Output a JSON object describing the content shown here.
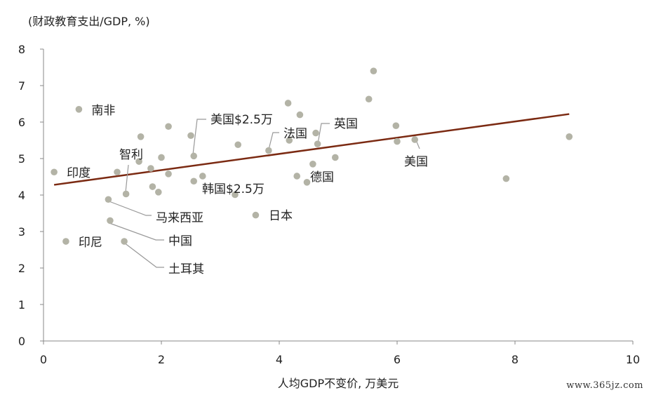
{
  "chart_data": {
    "type": "scatter",
    "title": "",
    "ylabel": "(财政教育支出/GDP, %)",
    "xlabel": "人均GDP不变价, 万美元",
    "xlim": [
      0,
      10
    ],
    "ylim": [
      0,
      8
    ],
    "xticks": [
      "0",
      "2",
      "4",
      "6",
      "8",
      "10"
    ],
    "yticks": [
      "0",
      "1",
      "2",
      "3",
      "4",
      "5",
      "6",
      "7",
      "8"
    ],
    "grid": false,
    "points": [
      {
        "x": 0.18,
        "y": 4.63
      },
      {
        "x": 0.38,
        "y": 2.73
      },
      {
        "x": 0.6,
        "y": 6.35
      },
      {
        "x": 1.1,
        "y": 3.88
      },
      {
        "x": 1.13,
        "y": 3.3
      },
      {
        "x": 1.25,
        "y": 4.63
      },
      {
        "x": 1.37,
        "y": 2.73
      },
      {
        "x": 1.4,
        "y": 4.03
      },
      {
        "x": 1.62,
        "y": 4.92
      },
      {
        "x": 1.65,
        "y": 5.6
      },
      {
        "x": 1.82,
        "y": 4.73
      },
      {
        "x": 1.85,
        "y": 4.23
      },
      {
        "x": 1.95,
        "y": 4.08
      },
      {
        "x": 2.0,
        "y": 5.03
      },
      {
        "x": 2.12,
        "y": 5.88
      },
      {
        "x": 2.12,
        "y": 4.58
      },
      {
        "x": 2.5,
        "y": 5.63
      },
      {
        "x": 2.55,
        "y": 5.07
      },
      {
        "x": 2.55,
        "y": 4.38
      },
      {
        "x": 2.7,
        "y": 4.52
      },
      {
        "x": 3.25,
        "y": 4.01
      },
      {
        "x": 3.3,
        "y": 5.38
      },
      {
        "x": 3.6,
        "y": 3.45
      },
      {
        "x": 3.82,
        "y": 5.22
      },
      {
        "x": 4.15,
        "y": 6.52
      },
      {
        "x": 4.17,
        "y": 5.5
      },
      {
        "x": 4.3,
        "y": 4.52
      },
      {
        "x": 4.35,
        "y": 6.2
      },
      {
        "x": 4.47,
        "y": 4.35
      },
      {
        "x": 4.57,
        "y": 4.85
      },
      {
        "x": 4.62,
        "y": 5.7
      },
      {
        "x": 4.65,
        "y": 5.4
      },
      {
        "x": 4.95,
        "y": 5.03
      },
      {
        "x": 5.52,
        "y": 6.63
      },
      {
        "x": 5.6,
        "y": 7.4
      },
      {
        "x": 5.98,
        "y": 5.9
      },
      {
        "x": 6.0,
        "y": 5.47
      },
      {
        "x": 6.3,
        "y": 5.52
      },
      {
        "x": 7.85,
        "y": 4.45
      },
      {
        "x": 8.92,
        "y": 5.6
      }
    ],
    "trendline": {
      "x": [
        0.18,
        8.92
      ],
      "y": [
        4.28,
        6.22
      ]
    },
    "annotations": [
      {
        "text": "南非",
        "x": 0.6,
        "y": 6.35,
        "color": "#222222"
      },
      {
        "text": "印度",
        "x": 0.18,
        "y": 4.63,
        "color": "#222222"
      },
      {
        "text": "智利",
        "x": 1.4,
        "y": 4.03,
        "color": "#222222"
      },
      {
        "text": "马来西亚",
        "x": 1.1,
        "y": 3.88,
        "color": "#222222"
      },
      {
        "text": "中国",
        "x": 1.13,
        "y": 3.3,
        "color": "#222222"
      },
      {
        "text": "印尼",
        "x": 0.38,
        "y": 2.73,
        "color": "#222222"
      },
      {
        "text": "土耳其",
        "x": 1.37,
        "y": 2.73,
        "color": "#222222"
      },
      {
        "text": "美国$2.5万",
        "x": 2.55,
        "y": 5.07,
        "color": "#1f7fc3"
      },
      {
        "text": "韩国$2.5万",
        "x": 2.55,
        "y": 4.38,
        "color": "#1f7fc3"
      },
      {
        "text": "法国",
        "x": 3.82,
        "y": 5.22,
        "color": "#222222"
      },
      {
        "text": "英国",
        "x": 4.65,
        "y": 5.4,
        "color": "#222222"
      },
      {
        "text": "德国",
        "x": 4.57,
        "y": 4.85,
        "color": "#222222"
      },
      {
        "text": "日本",
        "x": 3.6,
        "y": 3.45,
        "color": "#222222"
      },
      {
        "text": "美国",
        "x": 6.3,
        "y": 5.52,
        "color": "#222222"
      }
    ],
    "colors": {
      "points": "#b3b3a6",
      "trendline": "#7b2a12",
      "axis": "#888888"
    }
  },
  "watermark": "www.365jz.com"
}
